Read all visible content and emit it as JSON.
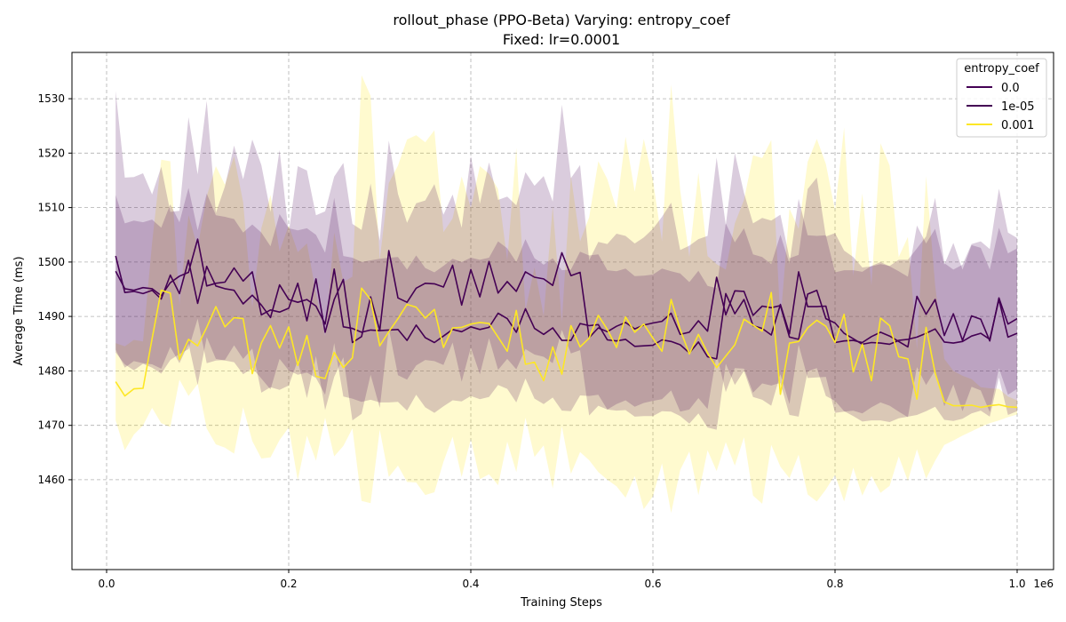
{
  "chart_data": {
    "type": "line",
    "title_line1": "rollout_phase (PPO-Beta) Varying: entropy_coef",
    "title_line2": "Fixed: lr=0.0001",
    "xlabel": "Training Steps",
    "ylabel": "Average Time (ms)",
    "x_offset_label": "1e6",
    "xlim": [
      -0.038,
      1.04
    ],
    "ylim": [
      1443.5,
      1538.5
    ],
    "x_ticks": [
      0.0,
      0.2,
      0.4,
      0.6,
      0.8,
      1.0
    ],
    "x_tick_labels": [
      "0.0",
      "0.2",
      "0.4",
      "0.6",
      "0.8",
      "1.0"
    ],
    "y_ticks": [
      1460,
      1470,
      1480,
      1490,
      1500,
      1510,
      1520,
      1530
    ],
    "y_tick_labels": [
      "1460",
      "1470",
      "1480",
      "1490",
      "1500",
      "1510",
      "1520",
      "1530"
    ],
    "grid": true,
    "legend": {
      "title": "entropy_coef",
      "position": "top-right",
      "entries": [
        "0.0",
        "1e-05",
        "0.001"
      ]
    },
    "x_start": 0.01,
    "x_step": 0.01,
    "series": [
      {
        "name": "0.0",
        "color": "#440154",
        "band_color": "#440154",
        "band_opacity": 0.2,
        "values": [
          1501.1,
          1494.4,
          1494.6,
          1494.2,
          1494.8,
          1493.2,
          1497.6,
          1494.2,
          1500.3,
          1492.4,
          1499.2,
          1495.6,
          1495.1,
          1494.8,
          1492.3,
          1493.9,
          1492.1,
          1489.8,
          1495.8,
          1493.1,
          1492.6,
          1493.1,
          1491.9,
          1488.6,
          1498.7,
          1488.1,
          1487.8,
          1487.1,
          1487.5,
          1487.4,
          1487.5,
          1487.6,
          1485.6,
          1488.4,
          1486.1,
          1485.2,
          1486.4,
          1487.6,
          1487.2,
          1488.1,
          1487.6,
          1488.0,
          1490.6,
          1489.6,
          1487.1,
          1491.4,
          1487.8,
          1486.7,
          1487.9,
          1485.6,
          1485.6,
          1488.7,
          1488.3,
          1488.5,
          1485.7,
          1485.5,
          1485.8,
          1484.5,
          1484.6,
          1484.7,
          1485.7,
          1485.4,
          1484.8,
          1483.3,
          1485.3,
          1482.6,
          1482.2,
          1494.2,
          1490.5,
          1493.1,
          1488.3,
          1487.8,
          1486.6,
          1492.2,
          1486.8,
          1498.2,
          1491.8,
          1491.8,
          1491.9,
          1485.2,
          1485.5,
          1485.6,
          1485.2,
          1486.3,
          1487.1,
          1486.4,
          1485.4,
          1484.4,
          1493.7,
          1490.4,
          1493.1,
          1486.5,
          1490.5,
          1485.6,
          1490.1,
          1489.5,
          1485.5,
          1493.4,
          1488.6,
          1489.6
        ],
        "band_low": [
          1483.9,
          1480.6,
          1481.8,
          1481.4,
          1481.2,
          1480.4,
          1484.4,
          1481.4,
          1485.0,
          1477.4,
          1486.2,
          1482.2,
          1481.9,
          1481.6,
          1479.4,
          1480.5,
          1478.6,
          1476.6,
          1482.2,
          1480.1,
          1479.3,
          1479.7,
          1478.7,
          1475.6,
          1485.1,
          1475.3,
          1474.9,
          1474.3,
          1474.7,
          1474.2,
          1474.2,
          1474.3,
          1472.7,
          1475.6,
          1473.3,
          1472.3,
          1473.5,
          1474.6,
          1474.4,
          1475.4,
          1474.8,
          1475.2,
          1477.4,
          1476.7,
          1474.2,
          1478.6,
          1474.9,
          1473.9,
          1475.1,
          1472.7,
          1472.6,
          1475.5,
          1475.4,
          1475.6,
          1472.9,
          1472.7,
          1472.8,
          1471.6,
          1471.7,
          1471.7,
          1472.6,
          1472.5,
          1471.7,
          1470.3,
          1472.2,
          1469.6,
          1469.2,
          1481.3,
          1477.4,
          1480.0,
          1475.2,
          1474.7,
          1473.6,
          1479.4,
          1473.9,
          1484.8,
          1478.7,
          1478.8,
          1478.9,
          1472.3,
          1472.5,
          1472.7,
          1472.2,
          1473.3,
          1474.2,
          1473.6,
          1472.5,
          1471.5,
          1480.7,
          1477.4,
          1480.1,
          1473.5,
          1477.5,
          1472.6,
          1477.1,
          1476.4,
          1472.4,
          1480.5,
          1475.6,
          1476.7
        ],
        "band_high": [
          1512.3,
          1507.1,
          1507.6,
          1507.3,
          1507.8,
          1506.3,
          1510.6,
          1507.3,
          1513.6,
          1505.8,
          1512.6,
          1508.6,
          1508.3,
          1507.9,
          1505.4,
          1506.9,
          1505.4,
          1502.9,
          1508.8,
          1506.2,
          1505.8,
          1506.2,
          1505.0,
          1501.7,
          1511.8,
          1501.1,
          1500.8,
          1500.0,
          1500.3,
          1500.6,
          1500.8,
          1500.9,
          1498.6,
          1501.2,
          1498.9,
          1498.1,
          1499.3,
          1500.6,
          1500.0,
          1500.8,
          1500.4,
          1500.8,
          1503.8,
          1502.5,
          1500.0,
          1504.2,
          1500.7,
          1499.5,
          1500.7,
          1498.5,
          1498.6,
          1501.9,
          1501.2,
          1501.4,
          1498.5,
          1498.3,
          1498.8,
          1497.4,
          1497.5,
          1497.7,
          1498.8,
          1498.3,
          1497.9,
          1496.3,
          1498.4,
          1495.6,
          1495.2,
          1507.1,
          1503.6,
          1506.2,
          1501.4,
          1500.9,
          1499.6,
          1505.0,
          1499.7,
          1511.6,
          1504.9,
          1504.8,
          1504.9,
          1498.1,
          1498.5,
          1498.5,
          1498.2,
          1499.3,
          1500.0,
          1499.2,
          1498.3,
          1497.3,
          1506.7,
          1503.4,
          1506.1,
          1499.5,
          1503.5,
          1498.6,
          1503.1,
          1502.6,
          1498.6,
          1506.3,
          1501.6,
          1502.5
        ]
      },
      {
        "name": "1e-05",
        "color": "#440154",
        "band_color": "#440154",
        "band_opacity": 0.2,
        "values": [
          1498.3,
          1495.1,
          1494.8,
          1495.3,
          1495.1,
          1493.8,
          1496.2,
          1497.4,
          1498.1,
          1504.2,
          1495.6,
          1496.1,
          1496.3,
          1498.9,
          1496.5,
          1498.2,
          1490.3,
          1491.2,
          1490.8,
          1491.5,
          1496.1,
          1489.2,
          1496.9,
          1487.1,
          1493.1,
          1496.8,
          1485.2,
          1486.3,
          1493.6,
          1487.4,
          1502.1,
          1493.4,
          1492.6,
          1495.2,
          1496.1,
          1496.0,
          1495.4,
          1499.4,
          1492.1,
          1498.6,
          1493.6,
          1500.1,
          1494.3,
          1496.4,
          1494.6,
          1498.2,
          1497.2,
          1496.9,
          1495.7,
          1501.7,
          1497.5,
          1498.1,
          1486.1,
          1487.9,
          1487.2,
          1488.2,
          1488.9,
          1487.7,
          1488.4,
          1488.8,
          1489.1,
          1490.6,
          1486.7,
          1487.1,
          1489.2,
          1487.3,
          1497.2,
          1490.3,
          1494.7,
          1494.6,
          1490.2,
          1491.9,
          1491.6,
          1492.0,
          1486.2,
          1485.8,
          1494.1,
          1494.8,
          1489.6,
          1488.8,
          1486.9,
          1485.9,
          1484.9,
          1485.2,
          1485.1,
          1484.9,
          1485.6,
          1485.8,
          1486.2,
          1486.9,
          1487.7,
          1485.3,
          1485.1,
          1485.4,
          1486.4,
          1486.9,
          1485.8,
          1493.1,
          1486.2,
          1486.9
        ],
        "band_low": [
          1483.4,
          1481.2,
          1480.1,
          1481.3,
          1480.6,
          1479.5,
          1482.0,
          1483.1,
          1484.0,
          1489.6,
          1481.4,
          1481.9,
          1482.0,
          1484.7,
          1482.2,
          1484.1,
          1476.0,
          1477.0,
          1476.5,
          1477.3,
          1481.9,
          1475.0,
          1482.7,
          1472.8,
          1478.9,
          1482.5,
          1470.9,
          1472.1,
          1479.3,
          1473.2,
          1487.8,
          1479.2,
          1478.4,
          1481.0,
          1482.0,
          1481.8,
          1481.1,
          1485.2,
          1478.0,
          1484.3,
          1479.4,
          1486.0,
          1480.2,
          1482.2,
          1480.3,
          1484.0,
          1483.0,
          1482.6,
          1481.4,
          1487.5,
          1483.2,
          1483.8,
          1471.8,
          1473.6,
          1472.9,
          1473.9,
          1474.6,
          1473.4,
          1474.1,
          1474.5,
          1474.8,
          1476.4,
          1472.5,
          1472.9,
          1475.0,
          1473.0,
          1483.0,
          1476.1,
          1480.5,
          1480.4,
          1476.0,
          1477.7,
          1477.3,
          1477.8,
          1471.9,
          1471.6,
          1479.9,
          1480.5,
          1475.4,
          1474.5,
          1472.6,
          1471.7,
          1470.7,
          1470.9,
          1470.9,
          1470.6,
          1471.3,
          1471.6,
          1471.9,
          1472.6,
          1473.4,
          1471.0,
          1470.8,
          1471.2,
          1472.2,
          1472.7,
          1471.6,
          1478.8,
          1471.9,
          1472.6
        ],
        "band_high": [
          1531.4,
          1515.5,
          1515.6,
          1516.3,
          1512.4,
          1517.5,
          1509.2,
          1509.4,
          1526.6,
          1516.1,
          1529.6,
          1509.0,
          1513.9,
          1521.4,
          1515.2,
          1522.5,
          1517.8,
          1509.2,
          1520.6,
          1505.2,
          1517.6,
          1516.8,
          1508.6,
          1509.3,
          1515.7,
          1518.2,
          1507.0,
          1505.9,
          1514.4,
          1503.9,
          1522.3,
          1512.5,
          1507.2,
          1510.8,
          1511.3,
          1514.3,
          1508.7,
          1512.4,
          1506.3,
          1519.5,
          1510.7,
          1518.3,
          1511.4,
          1512.0,
          1510.4,
          1516.5,
          1514.0,
          1515.8,
          1511.1,
          1528.9,
          1515.4,
          1517.8,
          1500.3,
          1503.7,
          1503.3,
          1505.2,
          1504.8,
          1503.4,
          1504.5,
          1506.1,
          1508.3,
          1510.9,
          1502.2,
          1503.0,
          1504.2,
          1504.8,
          1519.2,
          1506.8,
          1520.0,
          1512.7,
          1507.1,
          1508.1,
          1507.6,
          1508.7,
          1500.7,
          1501.3,
          1513.4,
          1515.5,
          1504.7,
          1505.3,
          1502.1,
          1500.9,
          1499.0,
          1499.2,
          1499.6,
          1499.3,
          1500.4,
          1500.4,
          1502.5,
          1504.7,
          1511.8,
          1499.8,
          1498.6,
          1499.5,
          1503.3,
          1503.8,
          1502.4,
          1513.5,
          1505.4,
          1504.4
        ]
      },
      {
        "name": "0.001",
        "color": "#fde725",
        "band_color": "#fde725",
        "band_opacity": 0.22,
        "values": [
          1478.0,
          1475.4,
          1476.7,
          1476.8,
          1485.9,
          1494.8,
          1494.3,
          1482.1,
          1485.8,
          1484.6,
          1488.0,
          1491.8,
          1488.1,
          1489.8,
          1489.6,
          1479.5,
          1485.1,
          1488.3,
          1484.2,
          1488.1,
          1481.0,
          1486.5,
          1479.0,
          1478.6,
          1483.4,
          1480.6,
          1482.4,
          1495.2,
          1493.1,
          1484.6,
          1487.2,
          1489.6,
          1492.2,
          1491.7,
          1489.7,
          1491.3,
          1484.3,
          1487.9,
          1488.0,
          1488.6,
          1488.9,
          1488.7,
          1486.2,
          1483.6,
          1491.1,
          1481.2,
          1481.6,
          1478.2,
          1484.4,
          1479.4,
          1488.3,
          1484.4,
          1486.0,
          1490.2,
          1487.6,
          1484.3,
          1489.9,
          1487.1,
          1488.6,
          1486.0,
          1483.6,
          1493.1,
          1487.6,
          1483.1,
          1486.7,
          1483.3,
          1480.6,
          1482.7,
          1484.8,
          1489.5,
          1488.4,
          1487.3,
          1494.4,
          1475.7,
          1485.1,
          1485.4,
          1487.9,
          1489.3,
          1488.2,
          1485.2,
          1490.4,
          1479.8,
          1484.9,
          1478.2,
          1489.7,
          1488.3,
          1482.6,
          1482.2,
          1474.8,
          1488.0,
          1479.6,
          1474.3,
          1473.6,
          1473.6,
          1473.7,
          1473.3,
          1473.6,
          1473.8,
          1473.4,
          1473.3
        ],
        "band_low": [
          1470.9,
          1465.4,
          1468.3,
          1470.0,
          1473.2,
          1470.4,
          1469.7,
          1478.4,
          1475.4,
          1477.6,
          1469.4,
          1466.5,
          1465.9,
          1464.8,
          1473.3,
          1467.1,
          1463.9,
          1464.1,
          1467.3,
          1469.6,
          1459.9,
          1468.1,
          1463.5,
          1471.4,
          1464.3,
          1466.2,
          1469.4,
          1456.1,
          1455.7,
          1469.2,
          1460.5,
          1462.6,
          1459.6,
          1459.5,
          1457.2,
          1457.7,
          1463.3,
          1467.9,
          1460.5,
          1467.5,
          1460.1,
          1461.0,
          1459.0,
          1467.0,
          1461.4,
          1471.4,
          1464.2,
          1466.3,
          1458.4,
          1469.8,
          1461.1,
          1465.1,
          1463.6,
          1461.4,
          1460.0,
          1458.8,
          1456.7,
          1460.7,
          1454.6,
          1457.0,
          1463.0,
          1453.9,
          1461.8,
          1465.2,
          1457.2,
          1465.4,
          1461.6,
          1466.9,
          1462.6,
          1467.8,
          1457.1,
          1455.6,
          1466.4,
          1462.4,
          1460.3,
          1464.6,
          1457.3,
          1456.0,
          1458.2,
          1460.9,
          1456.0,
          1462.2,
          1457.1,
          1460.7,
          1457.6,
          1458.9,
          1464.3,
          1459.8,
          1465.6,
          1460.2,
          1463.5,
          1466.4,
          1467.2,
          1468.1,
          1468.9,
          1469.7,
          1470.4,
          1470.9,
          1471.5,
          1472.0
        ],
        "band_high": [
          1485.1,
          1484.5,
          1485.7,
          1485.4,
          1503.5,
          1518.8,
          1518.5,
          1492.1,
          1508.6,
          1502.6,
          1512.1,
          1517.6,
          1514.2,
          1519.4,
          1511.0,
          1491.6,
          1506.2,
          1512.3,
          1502.0,
          1506.7,
          1501.8,
          1503.4,
          1494.3,
          1486.3,
          1505.4,
          1496.3,
          1497.3,
          1534.3,
          1530.5,
          1500.4,
          1514.5,
          1517.7,
          1522.5,
          1523.3,
          1522.0,
          1524.2,
          1505.5,
          1508.0,
          1515.7,
          1509.9,
          1517.6,
          1516.2,
          1513.4,
          1500.3,
          1521.0,
          1491.1,
          1499.0,
          1490.1,
          1510.2,
          1489.0,
          1515.8,
          1503.8,
          1508.2,
          1518.5,
          1515.2,
          1509.7,
          1523.0,
          1512.9,
          1522.6,
          1515.0,
          1503.8,
          1532.6,
          1513.2,
          1500.9,
          1516.4,
          1501.1,
          1499.6,
          1498.6,
          1507.1,
          1511.4,
          1519.6,
          1519.1,
          1522.4,
          1489.0,
          1509.8,
          1506.1,
          1518.4,
          1522.6,
          1518.0,
          1509.5,
          1524.7,
          1497.4,
          1512.6,
          1495.7,
          1521.8,
          1517.7,
          1500.9,
          1504.6,
          1484.0,
          1515.8,
          1495.7,
          1482.2,
          1480.0,
          1479.1,
          1478.5,
          1477.0,
          1476.8,
          1476.7,
          1475.3,
          1474.6
        ]
      }
    ]
  }
}
